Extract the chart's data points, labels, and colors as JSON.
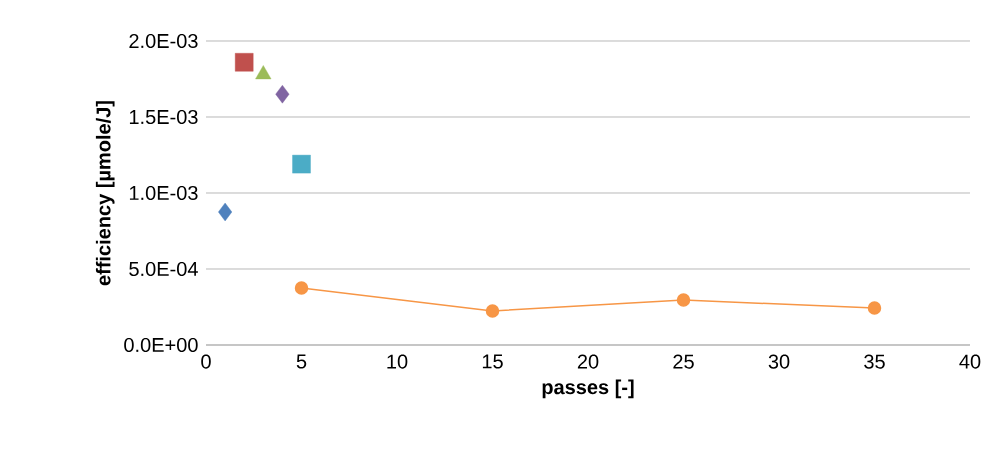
{
  "chart_data": {
    "type": "scatter",
    "xlabel": "passes [-]",
    "ylabel": "efficiency [µmole/J]",
    "xlim": [
      0,
      40
    ],
    "xticks": [
      0,
      5,
      10,
      15,
      20,
      25,
      30,
      35,
      40
    ],
    "ylim": [
      0,
      0.002
    ],
    "yticks": [
      {
        "value": 0,
        "label": "0.0E+00"
      },
      {
        "value": 0.0005,
        "label": "5.0E-04"
      },
      {
        "value": 0.001,
        "label": "1.0E-03"
      },
      {
        "value": 0.0015,
        "label": "1.5E-03"
      },
      {
        "value": 0.002,
        "label": "2.0E-03"
      }
    ],
    "grid": "y",
    "series": [
      {
        "marker": "diamond",
        "color": "#4f81bd",
        "x": [
          1
        ],
        "values": [
          0.000875
        ]
      },
      {
        "marker": "square",
        "color": "#c0504d",
        "x": [
          2
        ],
        "values": [
          0.00186
        ]
      },
      {
        "marker": "triangle",
        "color": "#9bbb59",
        "x": [
          3
        ],
        "values": [
          0.00178
        ]
      },
      {
        "marker": "diamond",
        "color": "#8064a2",
        "x": [
          4
        ],
        "values": [
          0.00165
        ]
      },
      {
        "marker": "square",
        "color": "#4bacc6",
        "x": [
          5
        ],
        "values": [
          0.00119
        ]
      },
      {
        "type": "line",
        "marker": "circle",
        "line_style": "solid",
        "color": "#f79646",
        "x": [
          5,
          15,
          25,
          35
        ],
        "values": [
          0.000375,
          0.000224,
          0.000296,
          0.000243
        ]
      }
    ]
  }
}
